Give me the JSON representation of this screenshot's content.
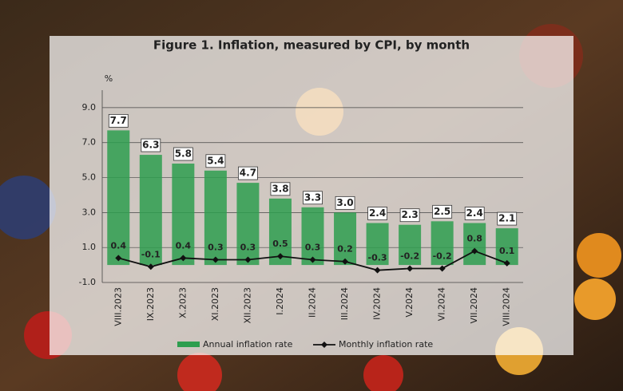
{
  "chart_data": {
    "type": "bar-line",
    "title": "Figure 1. Inflation, measured by CPI, by month",
    "y_label": "%",
    "categories": [
      "VIII.2023",
      "IX.2023",
      "X.2023",
      "XI.2023",
      "XII.2023",
      "I.2024",
      "II.2024",
      "III.2024",
      "IV.2024",
      "V.2024",
      "VI.2024",
      "VII.2024",
      "VIII.2024"
    ],
    "series": [
      {
        "name": "Annual inflation rate",
        "type": "bar",
        "color": "#2e9e4f",
        "values": [
          7.7,
          6.3,
          5.8,
          5.4,
          4.7,
          3.8,
          3.3,
          3.0,
          2.4,
          2.3,
          2.5,
          2.4,
          2.1
        ],
        "value_labels": [
          "7.7",
          "6.3",
          "5.8",
          "5.4",
          "4.7",
          "3.8",
          "3.3",
          "3.0",
          "2.4",
          "2.3",
          "2.5",
          "2.4",
          "2.1"
        ]
      },
      {
        "name": "Monthly inflation rate",
        "type": "line",
        "color": "#111111",
        "values": [
          0.4,
          -0.1,
          0.4,
          0.3,
          0.3,
          0.5,
          0.3,
          0.2,
          -0.3,
          -0.2,
          -0.2,
          0.8,
          0.1
        ],
        "value_labels": [
          "0.4",
          "-0.1",
          "0.4",
          "0.3",
          "0.3",
          "0.5",
          "0.3",
          "0.2",
          "-0.3",
          "-0.2",
          "-0.2",
          "0.8",
          "0.1"
        ]
      }
    ],
    "ylim": [
      -1,
      10
    ],
    "yticks": [
      {
        "value": 9,
        "label": "9.0"
      },
      {
        "value": 7,
        "label": "7.0"
      },
      {
        "value": 5,
        "label": "5.0"
      },
      {
        "value": 3,
        "label": "3.0"
      },
      {
        "value": 1,
        "label": "1.0"
      },
      {
        "value": -1,
        "label": "-1.0"
      }
    ],
    "grid": true,
    "legend": "bottom"
  }
}
